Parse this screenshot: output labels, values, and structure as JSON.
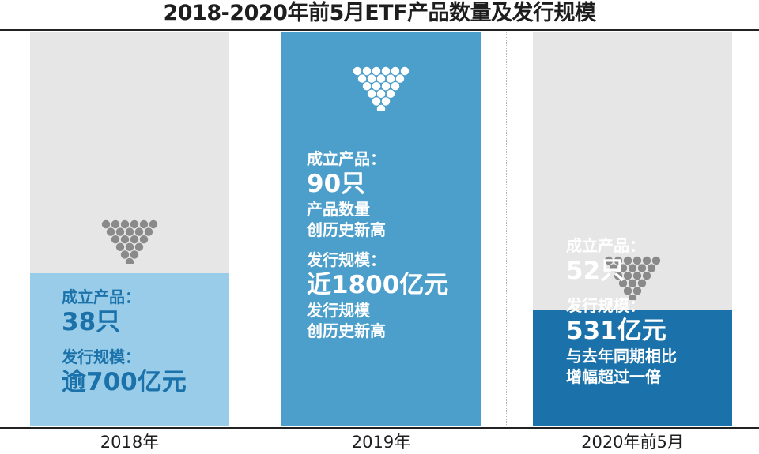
{
  "title": "2018-2020年前5月ETF产品数量及发行规模",
  "colors": {
    "c2018": "#98cce8",
    "c2019": "#4d9fcb",
    "c2020": "#1b72aa",
    "track": "#e6e6e6",
    "text2018": "#1b72aa"
  },
  "chart_data": {
    "type": "bar",
    "title": "2018-2020年前5月ETF产品数量及发行规模",
    "categories": [
      "2018年",
      "2019年",
      "2020年前5月"
    ],
    "series": [
      {
        "name": "成立产品",
        "values": [
          38,
          90,
          52
        ]
      },
      {
        "name": "发行规模",
        "values": [
          700,
          1800,
          531
        ]
      }
    ],
    "ylim": [
      0,
      1800
    ]
  },
  "panels": [
    {
      "year": "2018年",
      "count_label": "成立产品：",
      "count_value": "38只",
      "count_note": [],
      "scale_label": "发行规模：",
      "scale_value": "逾700亿元",
      "scale_note": []
    },
    {
      "year": "2019年",
      "count_label": "成立产品：",
      "count_value": "90只",
      "count_note": [
        "产品数量",
        "创历史新高"
      ],
      "scale_label": "发行规模：",
      "scale_value": "近1800亿元",
      "scale_note": [
        "发行规模",
        "创历史新高"
      ]
    },
    {
      "year": "2020年前5月",
      "count_label": "成立产品：",
      "count_value": "52只",
      "count_note": [],
      "scale_label": "发行规模：",
      "scale_value": "531亿元",
      "scale_note": [
        "与去年同期相比",
        "增幅超过一倍"
      ]
    }
  ]
}
